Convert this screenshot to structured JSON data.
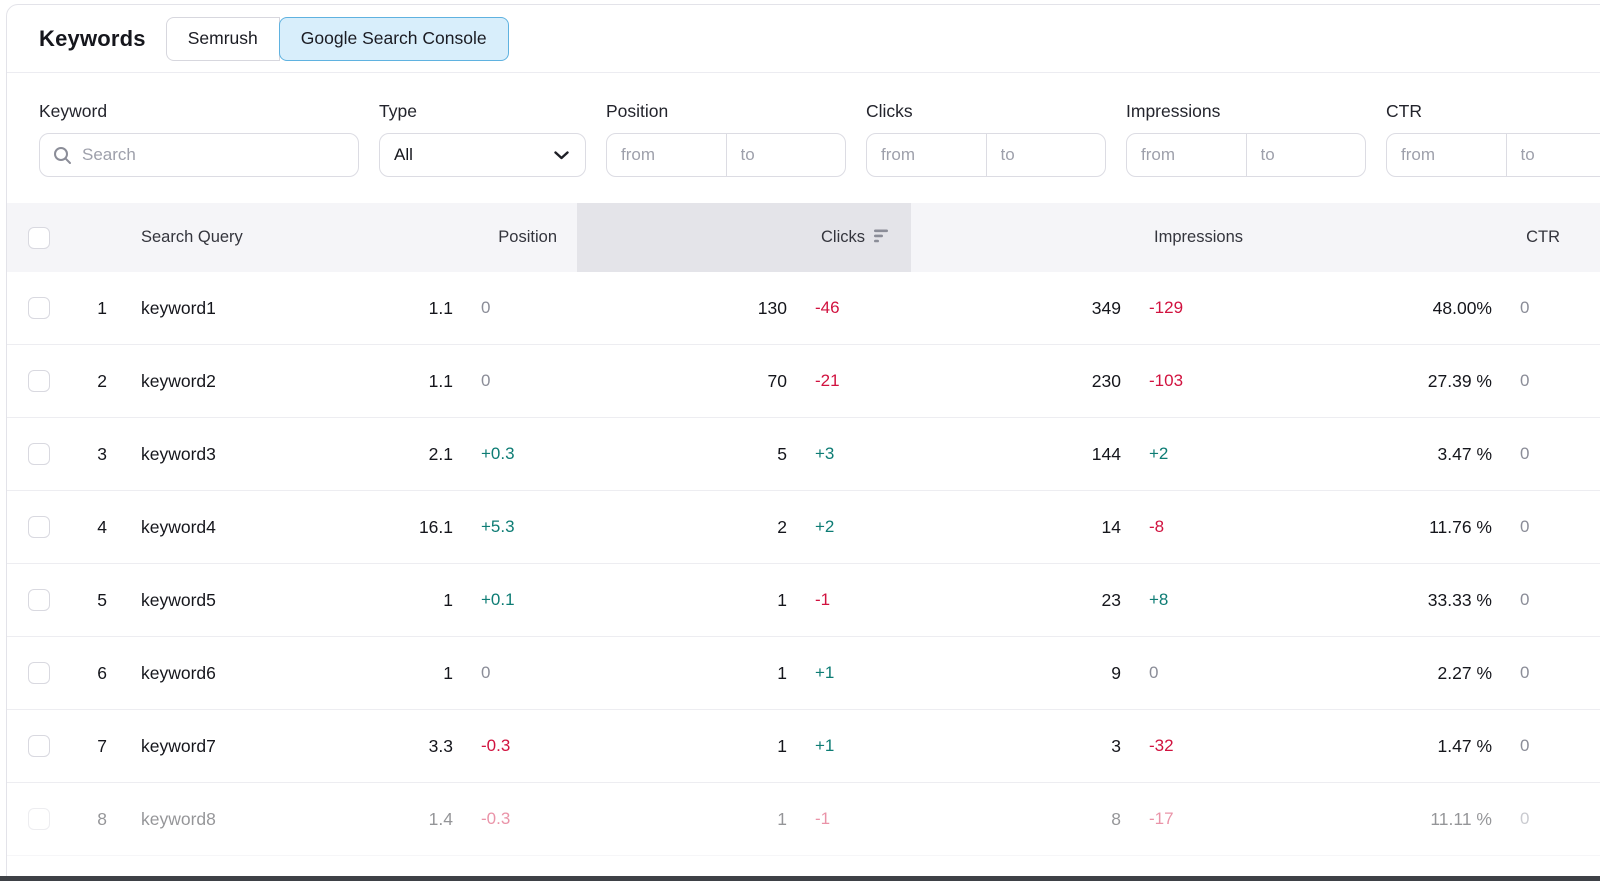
{
  "header": {
    "title": "Keywords",
    "tabs": [
      {
        "label": "Semrush",
        "selected": false
      },
      {
        "label": "Google Search Console",
        "selected": true
      }
    ]
  },
  "filters": [
    {
      "key": "keyword",
      "label": "Keyword",
      "kind": "search",
      "placeholder": "Search"
    },
    {
      "key": "type",
      "label": "Type",
      "kind": "select",
      "value": "All"
    },
    {
      "key": "position",
      "label": "Position",
      "kind": "range",
      "from_placeholder": "from",
      "to_placeholder": "to"
    },
    {
      "key": "clicks",
      "label": "Clicks",
      "kind": "range",
      "from_placeholder": "from",
      "to_placeholder": "to"
    },
    {
      "key": "impressions",
      "label": "Impressions",
      "kind": "range",
      "from_placeholder": "from",
      "to_placeholder": "to"
    },
    {
      "key": "ctr",
      "label": "CTR",
      "kind": "range",
      "from_placeholder": "from",
      "to_placeholder": "to"
    }
  ],
  "table": {
    "columns": {
      "query": "Search Query",
      "position": "Position",
      "clicks": "Clicks",
      "impressions": "Impressions",
      "ctr": "CTR"
    },
    "sorted_column": "clicks",
    "sort_order": "desc",
    "rows": [
      {
        "index": "1",
        "query": "keyword1",
        "position": "1.1",
        "position_delta": "0",
        "clicks": "130",
        "clicks_delta": "-46",
        "impressions": "349",
        "impressions_delta": "-129",
        "ctr": "48.00%",
        "ctr_delta": "0",
        "faded": false
      },
      {
        "index": "2",
        "query": "keyword2",
        "position": "1.1",
        "position_delta": "0",
        "clicks": "70",
        "clicks_delta": "-21",
        "impressions": "230",
        "impressions_delta": "-103",
        "ctr": "27.39 %",
        "ctr_delta": "0",
        "faded": false
      },
      {
        "index": "3",
        "query": "keyword3",
        "position": "2.1",
        "position_delta": "+0.3",
        "clicks": "5",
        "clicks_delta": "+3",
        "impressions": "144",
        "impressions_delta": "+2",
        "ctr": "3.47 %",
        "ctr_delta": "0",
        "faded": false
      },
      {
        "index": "4",
        "query": "keyword4",
        "position": "16.1",
        "position_delta": "+5.3",
        "clicks": "2",
        "clicks_delta": "+2",
        "impressions": "14",
        "impressions_delta": "-8",
        "ctr": "11.76 %",
        "ctr_delta": "0",
        "faded": false
      },
      {
        "index": "5",
        "query": "keyword5",
        "position": "1",
        "position_delta": "+0.1",
        "clicks": "1",
        "clicks_delta": "-1",
        "impressions": "23",
        "impressions_delta": "+8",
        "ctr": "33.33 %",
        "ctr_delta": "0",
        "faded": false
      },
      {
        "index": "6",
        "query": "keyword6",
        "position": "1",
        "position_delta": "0",
        "clicks": "1",
        "clicks_delta": "+1",
        "impressions": "9",
        "impressions_delta": "0",
        "ctr": "2.27 %",
        "ctr_delta": "0",
        "faded": false
      },
      {
        "index": "7",
        "query": "keyword7",
        "position": "3.3",
        "position_delta": "-0.3",
        "clicks": "1",
        "clicks_delta": "+1",
        "impressions": "3",
        "impressions_delta": "-32",
        "ctr": "1.47 %",
        "ctr_delta": "0",
        "faded": false
      },
      {
        "index": "8",
        "query": "keyword8",
        "position": "1.4",
        "position_delta": "-0.3",
        "clicks": "1",
        "clicks_delta": "-1",
        "impressions": "8",
        "impressions_delta": "-17",
        "ctr": "11.11 %",
        "ctr_delta": "0",
        "faded": true
      }
    ]
  },
  "colors": {
    "positive": "#0d7c74",
    "negative": "#d1123f",
    "neutral": "#8b8d98",
    "selected_tab_bg": "#d8eefb",
    "selected_tab_border": "#5fb2e0",
    "sorted_column_bg": "#e4e4e9",
    "table_header_bg": "#f5f5f8"
  }
}
